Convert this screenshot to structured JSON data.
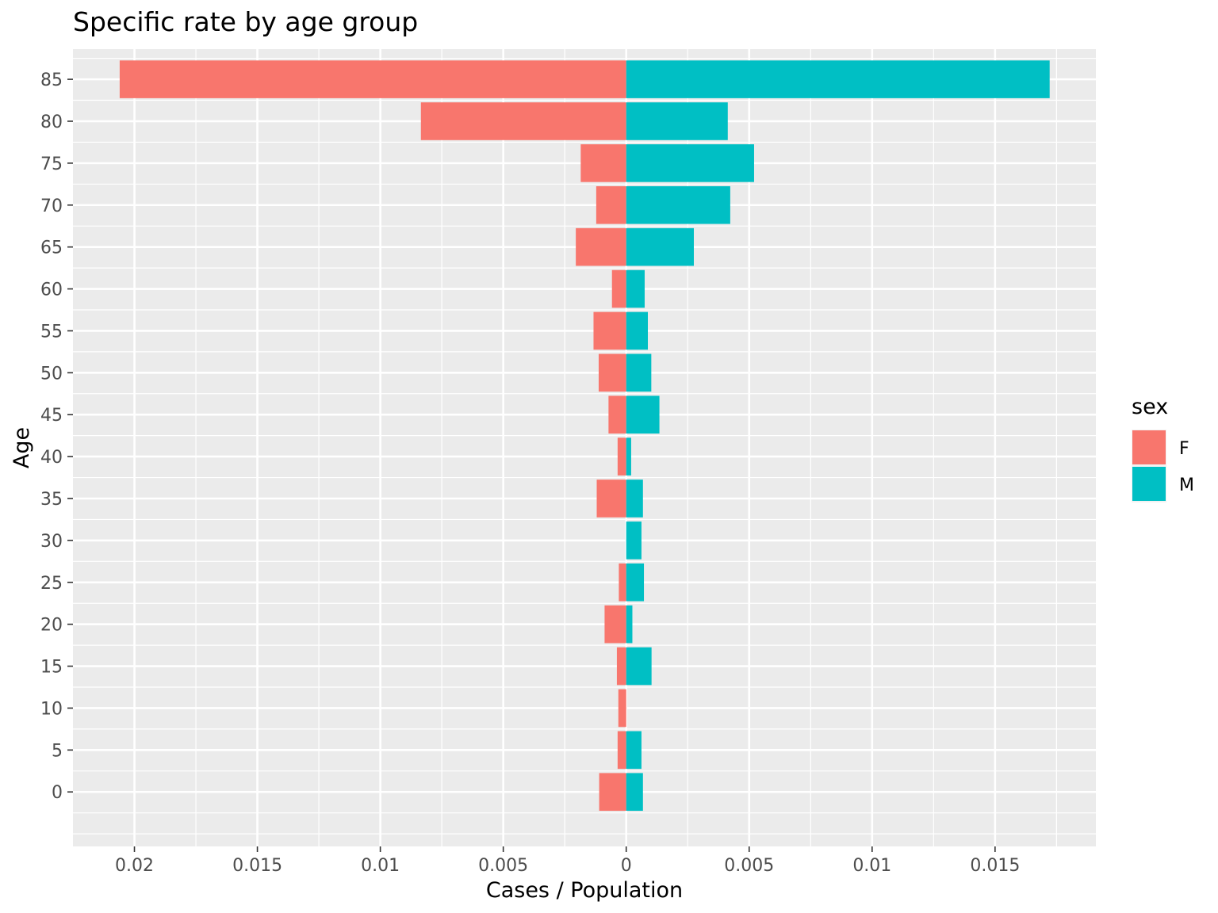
{
  "chart_data": {
    "type": "bar",
    "orientation": "horizontal-population-pyramid",
    "title": "Specific rate by age group",
    "xlabel": "Cases / Population",
    "ylabel": "Age",
    "categories": [
      0,
      5,
      10,
      15,
      20,
      25,
      30,
      35,
      40,
      45,
      50,
      55,
      60,
      65,
      70,
      75,
      80,
      85
    ],
    "series": [
      {
        "name": "F",
        "color": "#F8766D",
        "values": [
          -0.0011,
          -0.00035,
          -0.00032,
          -0.00038,
          -0.00088,
          -0.0003,
          0,
          -0.0012,
          -0.00035,
          -0.00072,
          -0.00112,
          -0.00133,
          -0.00058,
          -0.00205,
          -0.00122,
          -0.00185,
          -0.00835,
          -0.0206
        ]
      },
      {
        "name": "M",
        "color": "#00BFC4",
        "values": [
          0.00068,
          0.00062,
          0,
          0.00103,
          0.00025,
          0.00072,
          0.00062,
          0.00068,
          0.0002,
          0.00135,
          0.00102,
          0.00088,
          0.00075,
          0.00275,
          0.00423,
          0.0052,
          0.00413,
          0.01722
        ]
      }
    ],
    "xlim": [
      -0.0225,
      0.0191
    ],
    "xticks": [
      -0.02,
      -0.015,
      -0.01,
      -0.005,
      0,
      0.005,
      0.01,
      0.015
    ],
    "xtick_labels": [
      "0.02",
      "0.015",
      "0.01",
      "0.005",
      "0",
      "0.005",
      "0.01",
      "0.015"
    ],
    "ylim": [
      -6.5,
      88.6
    ],
    "yticks": [
      0,
      5,
      10,
      15,
      20,
      25,
      30,
      35,
      40,
      45,
      50,
      55,
      60,
      65,
      70,
      75,
      80,
      85
    ],
    "ytick_labels": [
      "0",
      "5",
      "10",
      "15",
      "20",
      "25",
      "30",
      "35",
      "40",
      "45",
      "50",
      "55",
      "60",
      "65",
      "70",
      "75",
      "80",
      "85"
    ],
    "bar_width": 4.5,
    "grid": true,
    "panel_background": "#EBEBEB",
    "legend": {
      "title": "sex",
      "position": "right",
      "entries": [
        {
          "label": "F",
          "color": "#F8766D"
        },
        {
          "label": "M",
          "color": "#00BFC4"
        }
      ]
    }
  }
}
